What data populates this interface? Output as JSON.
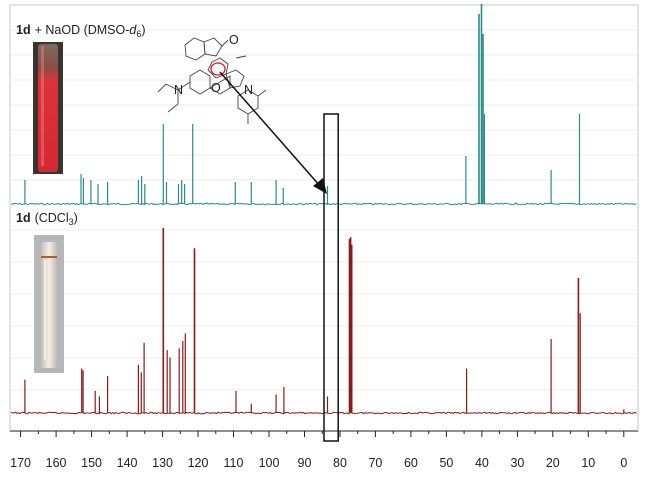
{
  "chart_data": {
    "type": "line",
    "title": "",
    "xlabel": "",
    "ylabel": "",
    "x_reversed": true,
    "xlim": [
      173,
      -4
    ],
    "xticks": [
      170,
      160,
      150,
      140,
      130,
      120,
      110,
      100,
      90,
      80,
      70,
      60,
      50,
      40,
      30,
      20,
      10,
      0
    ],
    "grid": true,
    "highlight_box_ppm": [
      80.5,
      84.5
    ],
    "series": [
      {
        "name": "",
        "panel": "top",
        "compound": "1d",
        "condition": "+ NaOD (DMSO-",
        "solvent_italic": "d",
        "solvent_sub": "6",
        "condition_close": ")",
        "color": "#2a8c8c",
        "peaks": [
          [
            168.8,
            0.12
          ],
          [
            153.0,
            0.15
          ],
          [
            152.3,
            0.13
          ],
          [
            150.2,
            0.12
          ],
          [
            148.2,
            0.1
          ],
          [
            145.5,
            0.11
          ],
          [
            136.8,
            0.12
          ],
          [
            135.9,
            0.14
          ],
          [
            135.0,
            0.1
          ],
          [
            129.8,
            0.4
          ],
          [
            128.9,
            0.11
          ],
          [
            125.5,
            0.1
          ],
          [
            124.6,
            0.12
          ],
          [
            123.8,
            0.1
          ],
          [
            121.5,
            0.4
          ],
          [
            109.5,
            0.11
          ],
          [
            105.0,
            0.11
          ],
          [
            98.0,
            0.12
          ],
          [
            96.0,
            0.08
          ],
          [
            83.5,
            0.09
          ],
          [
            44.5,
            0.24
          ],
          [
            40.8,
            0.95
          ],
          [
            40.1,
            1.0
          ],
          [
            39.7,
            0.85
          ],
          [
            39.3,
            0.45
          ],
          [
            20.5,
            0.17
          ],
          [
            12.5,
            0.45
          ]
        ]
      },
      {
        "name": "",
        "panel": "bottom",
        "compound": "1d",
        "condition": "(CDCl",
        "solvent_sub": "3",
        "condition_close": ")",
        "color": "#8b1a1a",
        "peaks": [
          [
            168.8,
            0.18
          ],
          [
            152.8,
            0.24
          ],
          [
            152.4,
            0.23
          ],
          [
            149.0,
            0.12
          ],
          [
            147.8,
            0.09
          ],
          [
            145.5,
            0.2
          ],
          [
            136.8,
            0.26
          ],
          [
            136.0,
            0.22
          ],
          [
            135.2,
            0.38
          ],
          [
            129.8,
            1.0
          ],
          [
            128.7,
            0.34
          ],
          [
            127.9,
            0.3
          ],
          [
            125.3,
            0.35
          ],
          [
            124.3,
            0.39
          ],
          [
            123.6,
            0.43
          ],
          [
            121.0,
            0.89
          ],
          [
            109.3,
            0.12
          ],
          [
            105.0,
            0.05
          ],
          [
            98.0,
            0.1
          ],
          [
            95.8,
            0.14
          ],
          [
            83.5,
            0.09
          ],
          [
            77.3,
            0.94
          ],
          [
            77.0,
            0.95
          ],
          [
            76.7,
            0.91
          ],
          [
            44.3,
            0.24
          ],
          [
            20.5,
            0.4
          ],
          [
            12.8,
            0.73
          ],
          [
            12.3,
            0.54
          ],
          [
            0.0,
            0.02
          ]
        ]
      }
    ]
  }
}
